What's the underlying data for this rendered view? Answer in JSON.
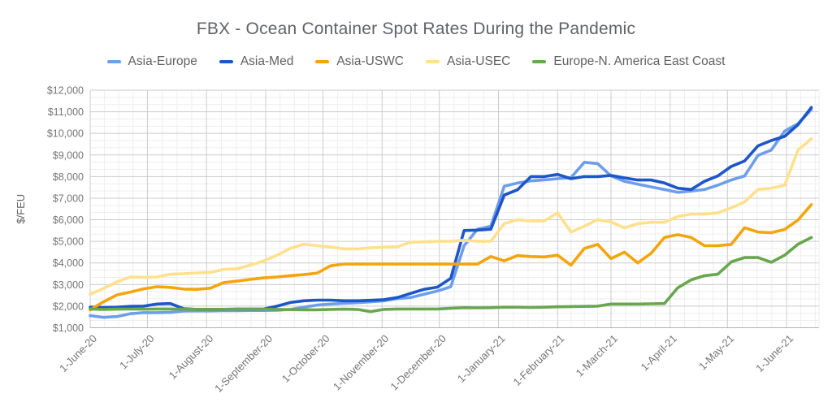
{
  "chart_data": {
    "type": "line",
    "title": "FBX - Ocean Container Spot Rates During the Pandemic",
    "ylabel": "$/FEU",
    "y_min": 1000,
    "y_max": 12000,
    "y_tick_step": 1000,
    "y_tick_labels": [
      "$1,000",
      "$2,000",
      "$3,000",
      "$4,000",
      "$5,000",
      "$6,000",
      "$7,000",
      "$8,000",
      "$9,000",
      "$10,000",
      "$11,000",
      "$12,000"
    ],
    "x_tick_labels": [
      "1-June-20",
      "1-July-20",
      "1-August-20",
      "1-September-20",
      "1-October-20",
      "1-November-20",
      "1-December-20",
      "1-January-21",
      "1-February-21",
      "1-March-21",
      "1-April-21",
      "1-May-21",
      "1-June-21"
    ],
    "x_tick_days": [
      0,
      30,
      61,
      92,
      122,
      153,
      183,
      214,
      245,
      273,
      304,
      334,
      365
    ],
    "x_total_days": 382,
    "week_step_days": 7,
    "legend_position": "top",
    "grid": {
      "major": "#cccccc",
      "minor": "#ededed",
      "baseline": "#b0b0b0"
    },
    "text_colors": {
      "title": "#5f6368",
      "legend": "#616161",
      "ticks": "#757575",
      "axis_title": "#616161"
    },
    "series": [
      {
        "name": "Asia-Europe",
        "color": "#6d9eeb",
        "values": [
          1560,
          1480,
          1520,
          1650,
          1700,
          1700,
          1710,
          1770,
          1780,
          1780,
          1790,
          1790,
          1800,
          1800,
          1810,
          1850,
          1950,
          2050,
          2100,
          2130,
          2160,
          2200,
          2250,
          2350,
          2400,
          2550,
          2700,
          2900,
          4800,
          5560,
          5700,
          7550,
          7700,
          7800,
          7850,
          7900,
          7950,
          8660,
          8600,
          8030,
          7780,
          7650,
          7520,
          7400,
          7270,
          7330,
          7400,
          7600,
          7840,
          8030,
          8980,
          9230,
          10100,
          10450,
          11100
        ]
      },
      {
        "name": "Asia-Med",
        "color": "#1d56c8",
        "values": [
          1950,
          1940,
          1950,
          1990,
          2000,
          2100,
          2120,
          1880,
          1850,
          1850,
          1850,
          1860,
          1860,
          1870,
          2000,
          2170,
          2250,
          2280,
          2280,
          2250,
          2250,
          2270,
          2300,
          2400,
          2590,
          2780,
          2880,
          3290,
          5500,
          5520,
          5560,
          7140,
          7390,
          8000,
          8000,
          8100,
          7900,
          8000,
          8000,
          8050,
          7940,
          7840,
          7840,
          7700,
          7460,
          7400,
          7780,
          8030,
          8470,
          8720,
          9420,
          9670,
          9860,
          10400,
          11200
        ]
      },
      {
        "name": "Asia-USWC",
        "color": "#f3a50c",
        "values": [
          1830,
          2200,
          2520,
          2650,
          2800,
          2900,
          2870,
          2790,
          2780,
          2830,
          3090,
          3160,
          3240,
          3310,
          3350,
          3410,
          3460,
          3530,
          3870,
          3950,
          3950,
          3950,
          3950,
          3950,
          3950,
          3950,
          3950,
          3950,
          3950,
          3950,
          4300,
          4100,
          4340,
          4300,
          4280,
          4360,
          3900,
          4670,
          4860,
          4200,
          4500,
          4000,
          4450,
          5180,
          5310,
          5180,
          4800,
          4800,
          4860,
          5630,
          5430,
          5400,
          5550,
          5990,
          6700
        ]
      },
      {
        "name": "Asia-USEC",
        "color": "#ffe08c",
        "values": [
          2550,
          2820,
          3120,
          3350,
          3330,
          3350,
          3480,
          3500,
          3540,
          3560,
          3700,
          3730,
          3900,
          4100,
          4360,
          4680,
          4870,
          4800,
          4740,
          4650,
          4650,
          4700,
          4730,
          4750,
          4960,
          4980,
          5000,
          5000,
          5050,
          5000,
          5000,
          5820,
          6000,
          5940,
          5940,
          6320,
          5430,
          5700,
          6000,
          5900,
          5620,
          5820,
          5880,
          5880,
          6150,
          6260,
          6260,
          6320,
          6550,
          6830,
          7400,
          7460,
          7600,
          9230,
          9750
        ]
      },
      {
        "name": "Europe-N. America East Coast",
        "color": "#68a74e",
        "values": [
          1870,
          1850,
          1860,
          1865,
          1860,
          1870,
          1870,
          1860,
          1850,
          1850,
          1855,
          1860,
          1860,
          1860,
          1850,
          1840,
          1830,
          1830,
          1850,
          1860,
          1850,
          1750,
          1850,
          1870,
          1870,
          1870,
          1870,
          1900,
          1930,
          1920,
          1930,
          1950,
          1950,
          1940,
          1950,
          1970,
          1980,
          1990,
          2000,
          2100,
          2100,
          2100,
          2110,
          2120,
          2850,
          3220,
          3410,
          3480,
          4050,
          4250,
          4250,
          4030,
          4360,
          4870,
          5180
        ]
      }
    ]
  }
}
